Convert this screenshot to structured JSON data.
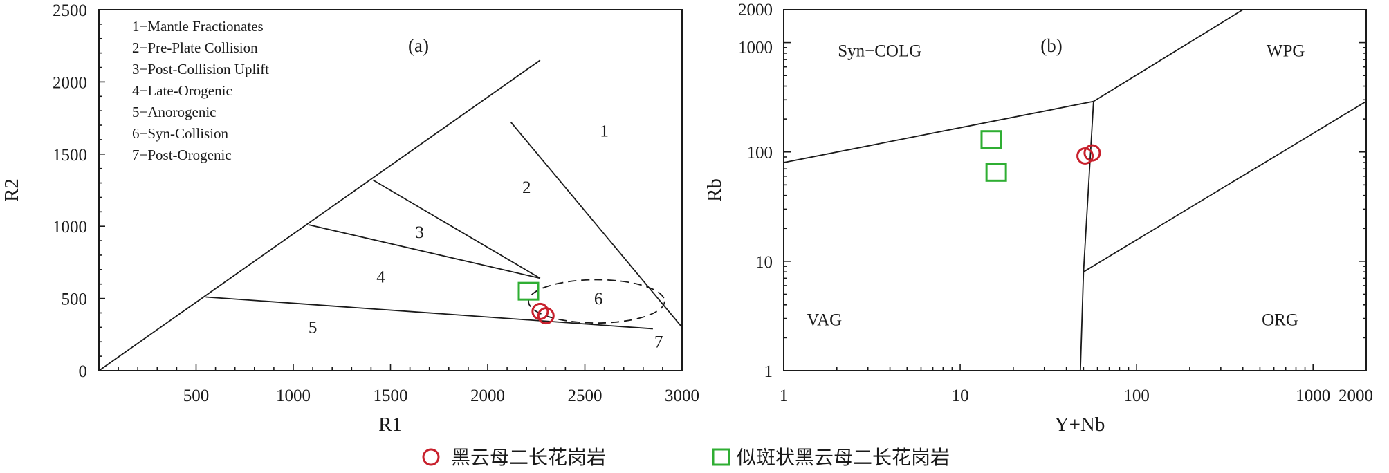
{
  "colors": {
    "circle_marker": "#c8202c",
    "square_marker": "#2fae33",
    "line": "#1a1a1a"
  },
  "legend": {
    "circle_label": "黑云母二长花岗岩",
    "square_label": "似斑状黑云母二长花岗岩"
  },
  "chart_data": [
    {
      "type": "scatter",
      "panel_label": "(a)",
      "xlabel": "R1",
      "ylabel": "R2",
      "xlim": [
        0,
        3000
      ],
      "ylim": [
        0,
        2500
      ],
      "x_ticks": [
        "500",
        "1000",
        "1500",
        "2000",
        "2500",
        "3000"
      ],
      "y_ticks": [
        "0",
        "500",
        "1000",
        "1500",
        "2000",
        "2500"
      ],
      "field_legend": [
        "1−Mantle Fractionates",
        "2−Pre-Plate Collision",
        "3−Post-Collision Uplift",
        "4−Late-Orogenic",
        "5−Anorogenic",
        "6−Syn-Collision",
        "7−Post-Orogenic"
      ],
      "field_labels": [
        {
          "text": "1",
          "x": 2600,
          "y": 1620
        },
        {
          "text": "2",
          "x": 2200,
          "y": 1230
        },
        {
          "text": "3",
          "x": 1650,
          "y": 920
        },
        {
          "text": "4",
          "x": 1450,
          "y": 610
        },
        {
          "text": "5",
          "x": 1100,
          "y": 260
        },
        {
          "text": "6",
          "x": 2570,
          "y": 460
        },
        {
          "text": "7",
          "x": 2880,
          "y": 160
        }
      ],
      "boundaries": [
        [
          [
            0,
            0
          ],
          [
            2270,
            2150
          ]
        ],
        [
          [
            2120,
            1720
          ],
          [
            3000,
            300
          ]
        ],
        [
          [
            1410,
            1320
          ],
          [
            2270,
            640
          ]
        ],
        [
          [
            1080,
            1010
          ],
          [
            2270,
            640
          ]
        ],
        [
          [
            550,
            510
          ],
          [
            2850,
            290
          ]
        ]
      ],
      "ellipse": {
        "cx": 2560,
        "cy": 480,
        "rx": 350,
        "ry": 150
      },
      "series": [
        {
          "name": "黑云母二长花岗岩",
          "marker": "circle",
          "points": [
            [
              2270,
              410
            ],
            [
              2300,
              380
            ]
          ]
        },
        {
          "name": "似斑状黑云母二长花岗岩",
          "marker": "square",
          "points": [
            [
              2210,
              550
            ]
          ]
        }
      ]
    },
    {
      "type": "scatter",
      "panel_label": "(b)",
      "xlabel": "Y+Nb",
      "ylabel": "Rb",
      "xscale": "log",
      "yscale": "log",
      "xlim": [
        1,
        2000
      ],
      "ylim": [
        1,
        2000
      ],
      "x_ticks": [
        "1",
        "10",
        "100",
        "1000",
        "2000"
      ],
      "y_ticks": [
        "1",
        "10",
        "100",
        "1000",
        "2000"
      ],
      "field_labels": [
        {
          "text": "Syn−COLG",
          "x": 3.5,
          "y": 750
        },
        {
          "text": "WPG",
          "x": 700,
          "y": 750
        },
        {
          "text": "VAG",
          "x": 1.7,
          "y": 2.6
        },
        {
          "text": "ORG",
          "x": 650,
          "y": 2.6
        }
      ],
      "boundaries": [
        [
          [
            1,
            80
          ],
          [
            57,
            290
          ]
        ],
        [
          [
            57,
            290
          ],
          [
            400,
            2000
          ]
        ],
        [
          [
            57,
            290
          ],
          [
            50,
            8
          ]
        ],
        [
          [
            50,
            8
          ],
          [
            48,
            1
          ]
        ],
        [
          [
            50,
            8
          ],
          [
            2000,
            290
          ]
        ]
      ],
      "series": [
        {
          "name": "黑云母二长花岗岩",
          "marker": "circle",
          "points": [
            [
              51,
              92
            ],
            [
              56,
              98
            ]
          ]
        },
        {
          "name": "似斑状黑云母二长花岗岩",
          "marker": "square",
          "points": [
            [
              15,
              130
            ],
            [
              16,
              65
            ]
          ]
        }
      ]
    }
  ]
}
